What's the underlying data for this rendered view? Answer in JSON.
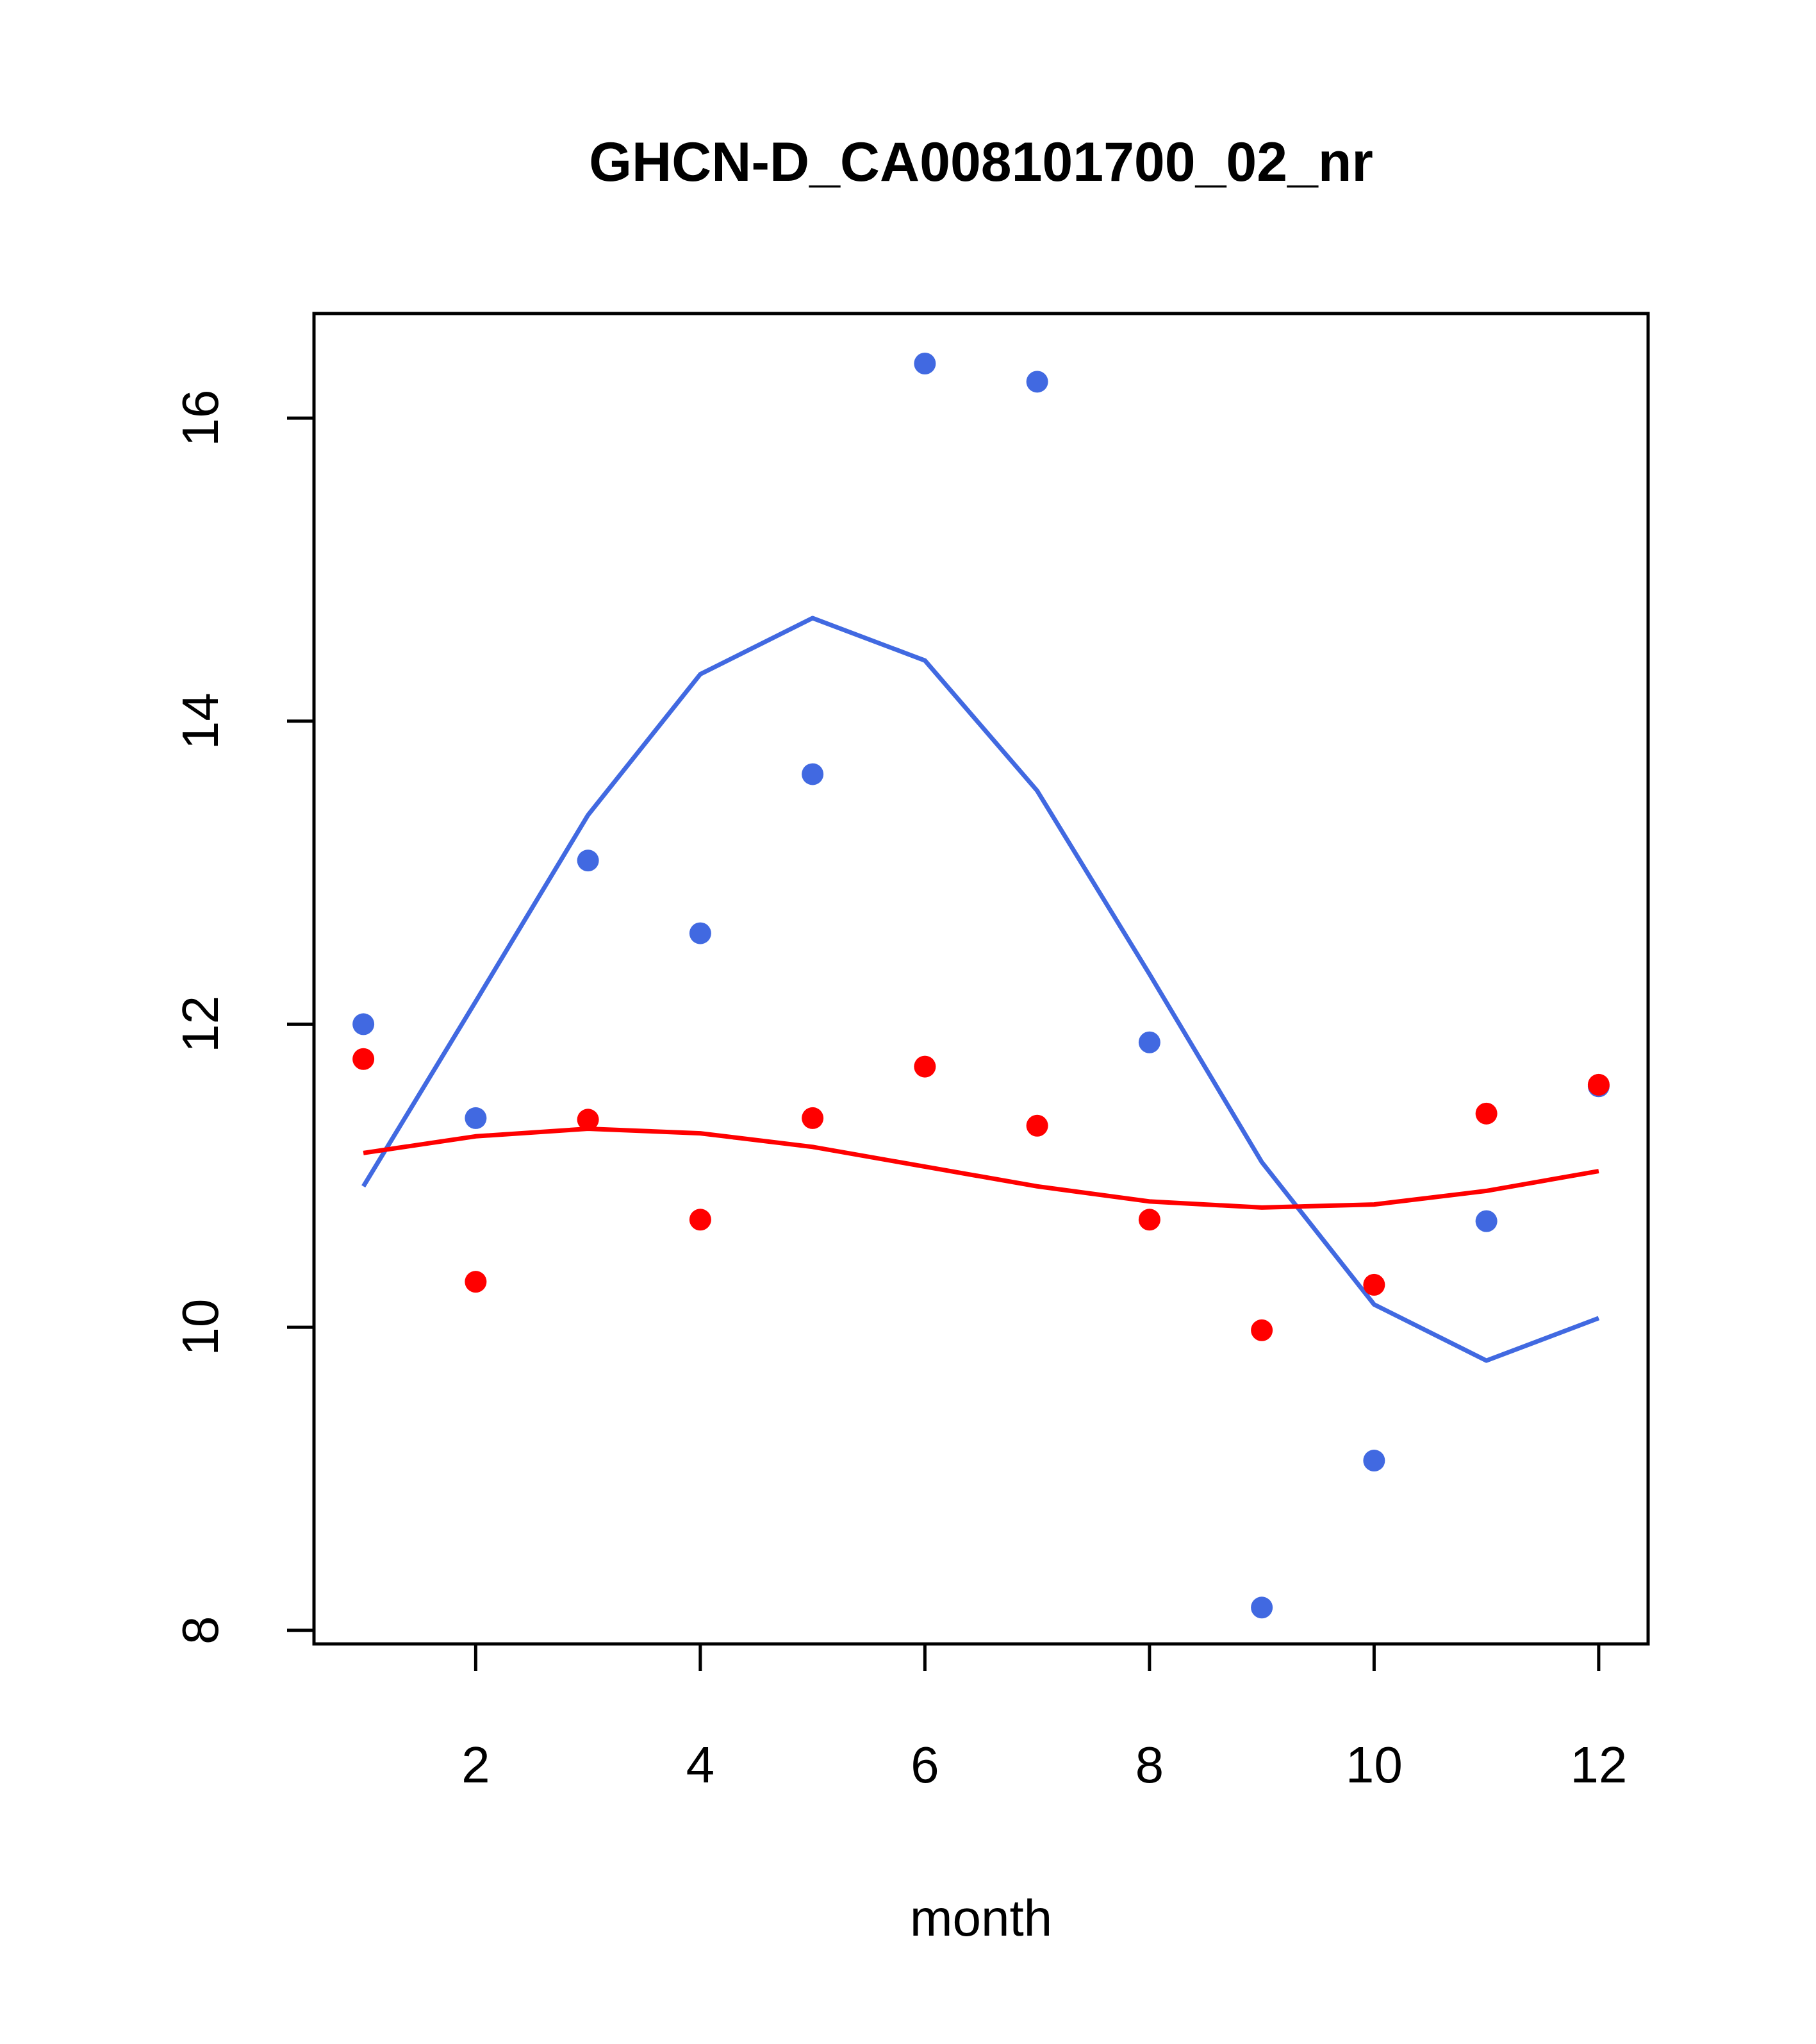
{
  "chart_data": {
    "type": "scatter",
    "title": "GHCN-D_CA008101700_02_nr",
    "xlabel": "month",
    "ylabel": "",
    "xlim": [
      0.56,
      12.44
    ],
    "ylim": [
      7.91,
      16.69
    ],
    "x_ticks": [
      2,
      4,
      6,
      8,
      10,
      12
    ],
    "y_ticks": [
      8,
      10,
      12,
      14,
      16
    ],
    "x_tick_labels": [
      "2",
      "4",
      "6",
      "8",
      "10",
      "12"
    ],
    "y_tick_labels": [
      "8",
      "10",
      "12",
      "14",
      "16"
    ],
    "grid": false,
    "legend": "none",
    "series": [
      {
        "kind": "points",
        "color": "#4169E1",
        "x": [
          1,
          2,
          3,
          4,
          5,
          6,
          7,
          8,
          9,
          10,
          11,
          12
        ],
        "y": [
          12.0,
          11.38,
          13.08,
          12.6,
          13.65,
          16.36,
          16.24,
          11.88,
          8.15,
          9.12,
          10.7,
          11.59
        ]
      },
      {
        "kind": "points",
        "color": "#FF0000",
        "x": [
          1,
          2,
          3,
          4,
          5,
          6,
          7,
          8,
          9,
          10,
          11,
          12
        ],
        "y": [
          11.77,
          10.3,
          11.37,
          10.71,
          11.38,
          11.72,
          11.33,
          10.71,
          9.98,
          10.28,
          11.41,
          11.6
        ]
      },
      {
        "kind": "line",
        "color": "#4169E1",
        "x": [
          1,
          2,
          3,
          4,
          5,
          6,
          7,
          8,
          9,
          10,
          11,
          12
        ],
        "y": [
          10.93,
          12.15,
          13.38,
          14.31,
          14.68,
          14.4,
          13.54,
          12.33,
          11.09,
          10.15,
          9.78,
          10.06
        ]
      },
      {
        "kind": "line",
        "color": "#FF0000",
        "x": [
          1,
          2,
          3,
          4,
          5,
          6,
          7,
          8,
          9,
          10,
          11,
          12
        ],
        "y": [
          11.15,
          11.26,
          11.31,
          11.28,
          11.19,
          11.06,
          10.93,
          10.83,
          10.79,
          10.81,
          10.9,
          11.03
        ]
      }
    ]
  }
}
